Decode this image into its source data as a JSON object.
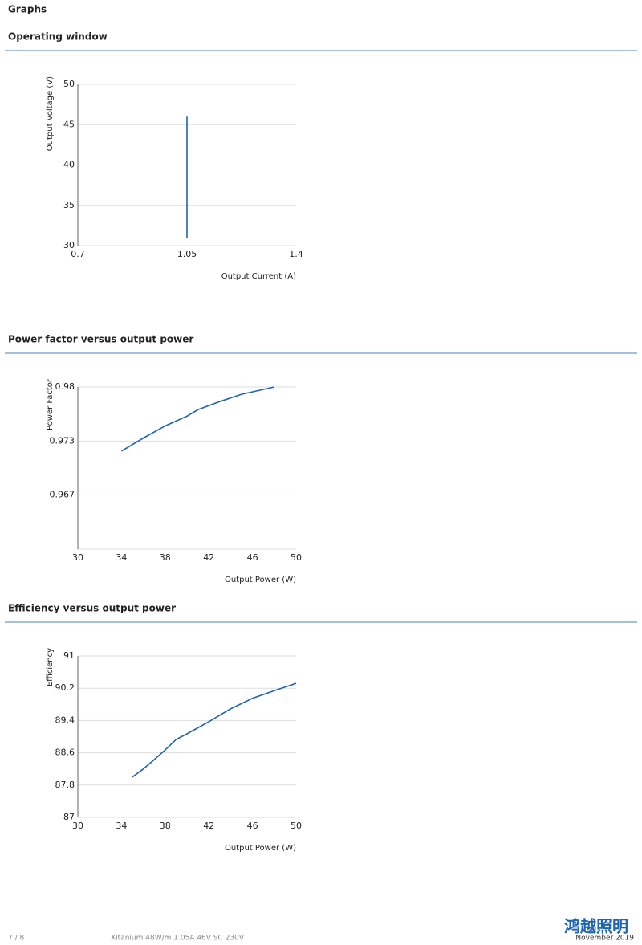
{
  "heading": "Graphs",
  "chart_data": [
    {
      "type": "line",
      "title": "Operating window",
      "x_label": "Output Current (A)",
      "y_label": "Output Voltage (V)",
      "x": [
        1.05,
        1.05
      ],
      "values": [
        31,
        46
      ],
      "color": "#1f63b5",
      "xlim": [
        0.7,
        1.4
      ],
      "xticks": [
        0.7,
        1.05,
        1.4
      ],
      "ylim": [
        30,
        50
      ],
      "yticks": [
        30,
        35,
        40,
        45,
        50
      ],
      "grid": true
    },
    {
      "type": "line",
      "title": "Power factor versus output power",
      "x_label": "Output Power (W)",
      "y_label": "Power Factor",
      "x": [
        34,
        36,
        38,
        40,
        41,
        43,
        45,
        48
      ],
      "values": [
        0.9721,
        0.9737,
        0.9752,
        0.9764,
        0.9772,
        0.9782,
        0.9791,
        0.98
      ],
      "color": "#1f63b5",
      "xlim": [
        30,
        50
      ],
      "xticks": [
        30,
        34,
        38,
        42,
        46,
        50
      ],
      "ylim": [
        0.96,
        0.98
      ],
      "yticks": [
        {
          "value": 0.96667,
          "label": "0.967"
        },
        {
          "value": 0.97333,
          "label": "0.973"
        },
        0.98
      ],
      "grid": true
    },
    {
      "type": "line",
      "title": "Efficiency versus output power",
      "x_label": "Output Power (W)",
      "y_label": "Efficiency",
      "x": [
        35,
        36,
        37,
        38,
        39,
        40,
        42,
        44,
        46,
        48,
        50
      ],
      "values": [
        88.0,
        88.2,
        88.43,
        88.67,
        88.93,
        89.07,
        89.37,
        89.69,
        89.95,
        90.14,
        90.32
      ],
      "color": "#1f63b5",
      "xlim": [
        30,
        50
      ],
      "xticks": [
        30,
        34,
        38,
        42,
        46,
        50
      ],
      "ylim": [
        87,
        91
      ],
      "yticks": [
        87,
        87.8,
        88.6,
        89.4,
        90.2,
        91
      ],
      "grid": true
    }
  ],
  "footer": {
    "page": "7 / 8",
    "product": "Xitanium 48W/m 1.05A 46V SC 230V",
    "date": "November 2019",
    "logo": "鸿越照明"
  }
}
